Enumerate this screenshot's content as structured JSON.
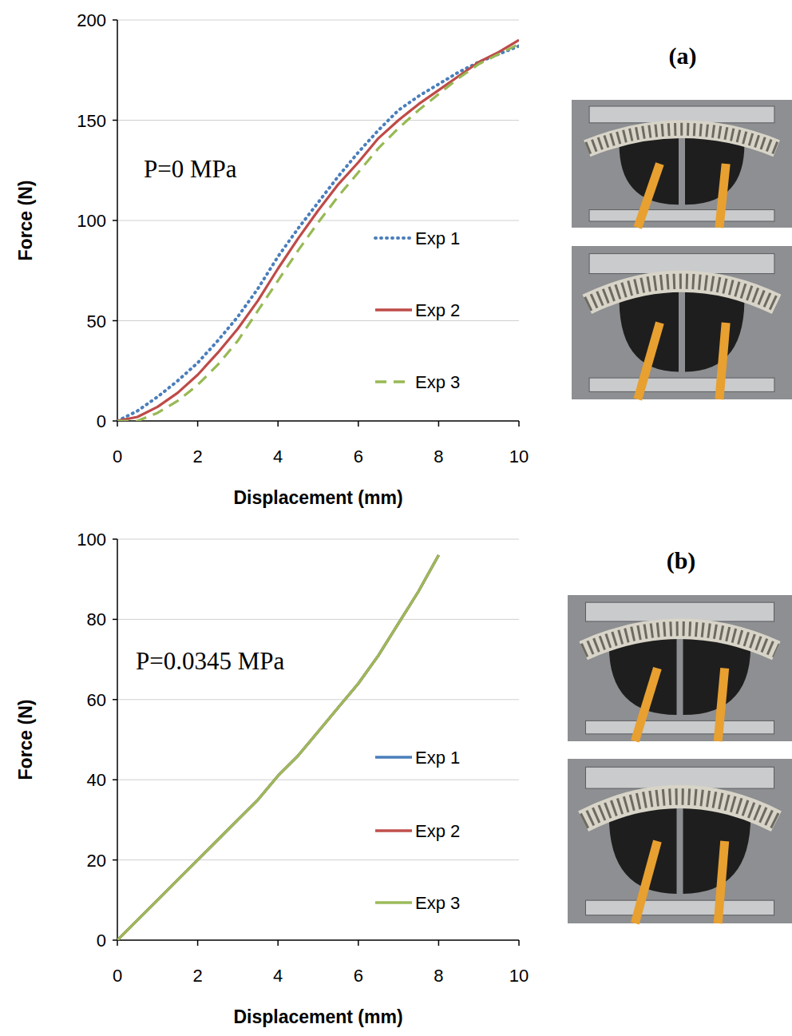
{
  "chart_data": [
    {
      "type": "line",
      "panel_label": "(a)",
      "annotation": "P=0 MPa",
      "x_label": "Displacement (mm)",
      "y_label": "Force (N)",
      "x": [
        0,
        0.5,
        1,
        1.5,
        2,
        2.5,
        3,
        3.5,
        4,
        4.5,
        5,
        5.5,
        6,
        6.5,
        7,
        7.5,
        8,
        8.5,
        9,
        9.5,
        10
      ],
      "series": [
        {
          "name": "Exp 1",
          "color": "#4a7ebb",
          "line_style": "dotted",
          "values": [
            0,
            5,
            12,
            20,
            29,
            40,
            52,
            66,
            82,
            96,
            109,
            122,
            134,
            145,
            155,
            162,
            168,
            174,
            179,
            183,
            187
          ]
        },
        {
          "name": "Exp 2",
          "color": "#be4b48",
          "line_style": "solid",
          "values": [
            0,
            2,
            7,
            14,
            23,
            34,
            46,
            60,
            76,
            91,
            105,
            118,
            129,
            141,
            150,
            158,
            165,
            172,
            179,
            184,
            190
          ]
        },
        {
          "name": "Exp 3",
          "color": "#98b954",
          "line_style": "dashed",
          "values": [
            0,
            0,
            4,
            10,
            18,
            28,
            40,
            55,
            70,
            85,
            99,
            112,
            124,
            136,
            146,
            155,
            163,
            171,
            178,
            183,
            188
          ]
        }
      ],
      "xlim": [
        0,
        10
      ],
      "xticks": [
        0,
        2,
        4,
        6,
        8,
        10
      ],
      "ylim": [
        0,
        200
      ],
      "yticks": [
        0,
        50,
        100,
        150,
        200
      ],
      "grid": true,
      "legend": "right"
    },
    {
      "type": "line",
      "panel_label": "(b)",
      "annotation": "P=0.0345 MPa",
      "x_label": "Displacement (mm)",
      "y_label": "Force (N)",
      "x": [
        0,
        0.5,
        1,
        1.5,
        2,
        2.5,
        3,
        3.5,
        4,
        4.5,
        5,
        5.5,
        6,
        6.5,
        7,
        7.5,
        8
      ],
      "series": [
        {
          "name": "Exp 1",
          "color": "#4a7ebb",
          "line_style": "solid",
          "values": [
            0,
            5,
            10,
            15,
            20,
            25,
            30,
            35,
            41,
            46,
            52,
            58,
            64,
            71,
            79,
            87,
            96
          ]
        },
        {
          "name": "Exp 2",
          "color": "#c0504d",
          "line_style": "solid",
          "values": [
            0,
            5,
            10,
            15,
            20,
            25,
            30,
            35,
            41,
            46,
            52,
            58,
            64,
            71,
            79,
            87,
            96
          ]
        },
        {
          "name": "Exp 3",
          "color": "#9bbb59",
          "line_style": "solid",
          "values": [
            0,
            5,
            10,
            15,
            20,
            25,
            30,
            35,
            41,
            46,
            52,
            58,
            64,
            71,
            79,
            87,
            96
          ]
        }
      ],
      "xlim": [
        0,
        10
      ],
      "xticks": [
        0,
        2,
        4,
        6,
        8,
        10
      ],
      "ylim": [
        0,
        100
      ],
      "yticks": [
        0,
        20,
        40,
        60,
        80,
        100
      ],
      "grid": true,
      "legend": "right"
    }
  ]
}
